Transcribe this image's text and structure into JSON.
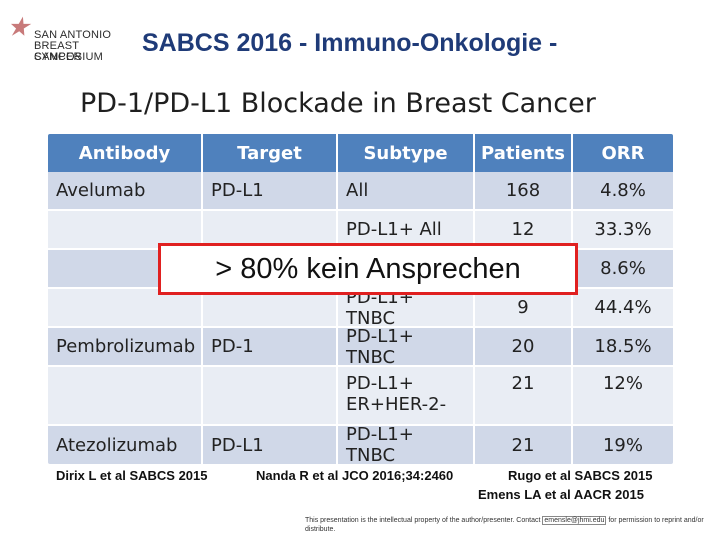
{
  "header": {
    "logo_lines": [
      "SAN ANTONIO",
      "BREAST CANCER",
      "SYMPOSIUM"
    ],
    "title": "SABCS 2016 - Immuno-Onkologie -"
  },
  "slide_title": "PD-1/PD-L1 Blockade in Breast Cancer",
  "table": {
    "headers": [
      "Antibody",
      "Target",
      "Subtype",
      "Patients",
      "ORR"
    ],
    "rows": [
      [
        "Avelumab",
        "PD-L1",
        "All",
        "168",
        "4.8%"
      ],
      [
        "",
        "",
        "PD-L1+ All",
        "12",
        "33.3%"
      ],
      [
        "",
        "",
        "",
        "",
        "8.6%"
      ],
      [
        "",
        "",
        "PD-L1+ TNBC",
        "9",
        "44.4%"
      ],
      [
        "Pembrolizumab",
        "PD-1",
        "PD-L1+ TNBC",
        "20",
        "18.5%"
      ],
      [
        "",
        "",
        "PD-L1+\nER+HER-2-",
        "21",
        "12%"
      ],
      [
        "Atezolizumab",
        "PD-L1",
        "PD-L1+ TNBC",
        "21",
        "19%"
      ]
    ]
  },
  "callout": "> 80% kein Ansprechen",
  "references": {
    "r1": "Dirix L et al SABCS 2015",
    "r2": "Nanda R et al JCO 2016;34:2460",
    "r3": "Rugo et al SABCS 2015",
    "r4": "Emens LA et al AACR 2015"
  },
  "disclaimer": {
    "before": "This presentation is the intellectual property of the author/presenter. Contact",
    "email": "emensle@jhmi.edu",
    "after": "for permission to reprint and/or distribute."
  },
  "colors": {
    "header_title": "#1f3b78",
    "table_header": "#4f81bd",
    "row_shade_a": "#d0d8e8",
    "row_shade_b": "#e9edf4",
    "callout_border": "#e02020"
  }
}
